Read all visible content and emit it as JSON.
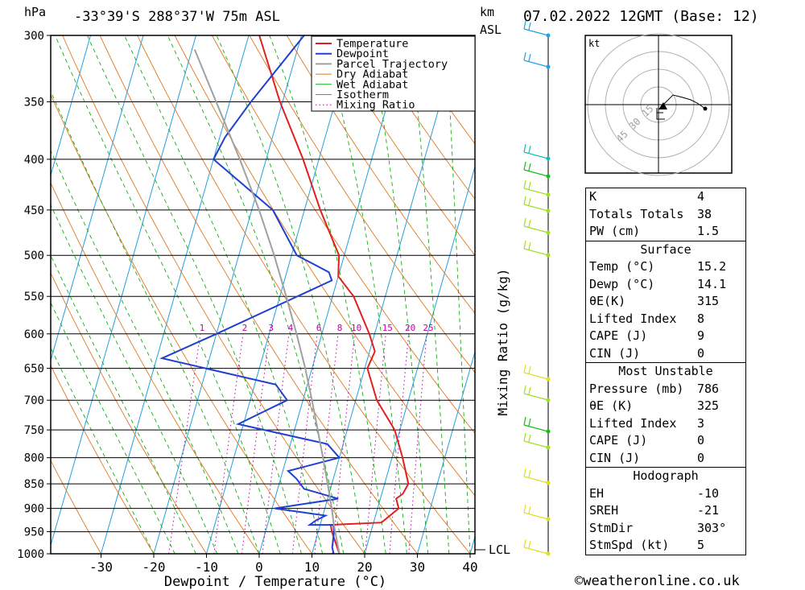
{
  "header": {
    "pressure_unit": "hPa",
    "location": "-33°39'S  288°37'W  75m  ASL",
    "height_unit": "km",
    "height_ref": "ASL",
    "datetime": "07.02.2022  12GMT  (Base: 12)"
  },
  "chart_data": {
    "type": "line",
    "xlabel": "Dewpoint / Temperature (°C)",
    "ylabel": "hPa",
    "secondary_label": "Mixing Ratio (g/kg)",
    "xlim": [
      -40,
      40
    ],
    "ylim": [
      1000,
      300
    ],
    "y_scale": "log",
    "skew": true,
    "x_ticks": [
      -30,
      -20,
      -10,
      0,
      10,
      20,
      30,
      40
    ],
    "pressure_ticks": [
      300,
      350,
      400,
      450,
      500,
      550,
      600,
      650,
      700,
      750,
      800,
      850,
      900,
      950,
      1000
    ],
    "legend_position": "top-right",
    "legend": [
      "Temperature",
      "Dewpoint",
      "Parcel Trajectory",
      "Dry Adiabat",
      "Wet Adiabat",
      "Isotherm",
      "Mixing Ratio"
    ],
    "mixing_ratio_labels": [
      "1",
      "2",
      "3",
      "4",
      "6",
      "8",
      "10",
      "15",
      "20",
      "25"
    ],
    "lcl_label": "LCL",
    "colors": {
      "temperature": "#e02020",
      "dewpoint": "#2040d0",
      "parcel": "#a0a0a0",
      "dry_adiabat": "#e07820",
      "wet_adiabat": "#10b010",
      "isotherm": "#20a0e0",
      "mixing_ratio": "#c000a0"
    },
    "series": [
      {
        "name": "Temperature",
        "points": [
          [
            1000,
            15.2
          ],
          [
            950,
            12.6
          ],
          [
            935,
            12
          ],
          [
            930,
            21.5
          ],
          [
            900,
            24
          ],
          [
            880,
            23
          ],
          [
            870,
            24
          ],
          [
            850,
            24.5
          ],
          [
            800,
            22
          ],
          [
            750,
            19
          ],
          [
            700,
            14
          ],
          [
            650,
            10.5
          ],
          [
            625,
            11
          ],
          [
            600,
            9
          ],
          [
            550,
            4
          ],
          [
            525,
            0
          ],
          [
            500,
            -1
          ],
          [
            450,
            -7
          ],
          [
            400,
            -13
          ],
          [
            350,
            -20.5
          ],
          [
            300,
            -28
          ]
        ]
      },
      {
        "name": "Dewpoint",
        "points": [
          [
            1000,
            14.1
          ],
          [
            985,
            13.5
          ],
          [
            950,
            13
          ],
          [
            935,
            12.5
          ],
          [
            935,
            8
          ],
          [
            925,
            9
          ],
          [
            915,
            10.5
          ],
          [
            900,
            0.5
          ],
          [
            880,
            12
          ],
          [
            860,
            5
          ],
          [
            840,
            3
          ],
          [
            825,
            1
          ],
          [
            800,
            10
          ],
          [
            775,
            7
          ],
          [
            740,
            -11
          ],
          [
            700,
            -3
          ],
          [
            675,
            -6
          ],
          [
            635,
            -29
          ],
          [
            600,
            -20
          ],
          [
            530,
            -1
          ],
          [
            520,
            -2
          ],
          [
            500,
            -9
          ],
          [
            450,
            -16
          ],
          [
            400,
            -30
          ],
          [
            380,
            -29
          ],
          [
            350,
            -26
          ],
          [
            300,
            -19.5
          ]
        ]
      },
      {
        "name": "Parcel Trajectory",
        "points": [
          [
            1000,
            15.2
          ],
          [
            935,
            12.6
          ],
          [
            900,
            11.3
          ],
          [
            850,
            9.2
          ],
          [
            800,
            6.9
          ],
          [
            750,
            4.4
          ],
          [
            700,
            1.7
          ],
          [
            650,
            -1.3
          ],
          [
            600,
            -4.8
          ],
          [
            550,
            -8.8
          ],
          [
            500,
            -13.3
          ],
          [
            450,
            -18.6
          ],
          [
            400,
            -25
          ],
          [
            350,
            -32.6
          ],
          [
            310,
            -39.5
          ]
        ]
      }
    ]
  },
  "hodograph": {
    "unit_label": "kt",
    "rings": [
      "15",
      "30",
      "45"
    ]
  },
  "stats": {
    "top": [
      {
        "label": "K",
        "value": "4"
      },
      {
        "label": "Totals Totals",
        "value": "38"
      },
      {
        "label": "PW (cm)",
        "value": "1.5"
      }
    ],
    "surface_title": "Surface",
    "surface": [
      {
        "label": "Temp (°C)",
        "value": "15.2"
      },
      {
        "label": "Dewp (°C)",
        "value": "14.1"
      },
      {
        "label": "θE(K)",
        "value": "315"
      },
      {
        "label": "Lifted Index",
        "value": "8"
      },
      {
        "label": "CAPE (J)",
        "value": "9"
      },
      {
        "label": "CIN (J)",
        "value": "0"
      }
    ],
    "mu_title": "Most Unstable",
    "mu": [
      {
        "label": "Pressure (mb)",
        "value": "786"
      },
      {
        "label": "θE (K)",
        "value": "325"
      },
      {
        "label": "Lifted Index",
        "value": "3"
      },
      {
        "label": "CAPE (J)",
        "value": "0"
      },
      {
        "label": "CIN (J)",
        "value": "0"
      }
    ],
    "hodo_title": "Hodograph",
    "hodo": [
      {
        "label": "EH",
        "value": "-10"
      },
      {
        "label": "SREH",
        "value": "-21"
      },
      {
        "label": "StmDir",
        "value": "303°"
      },
      {
        "label": "StmSpd (kt)",
        "value": "5"
      }
    ]
  },
  "footer": {
    "copyright": "©weatheronline.co.uk"
  }
}
